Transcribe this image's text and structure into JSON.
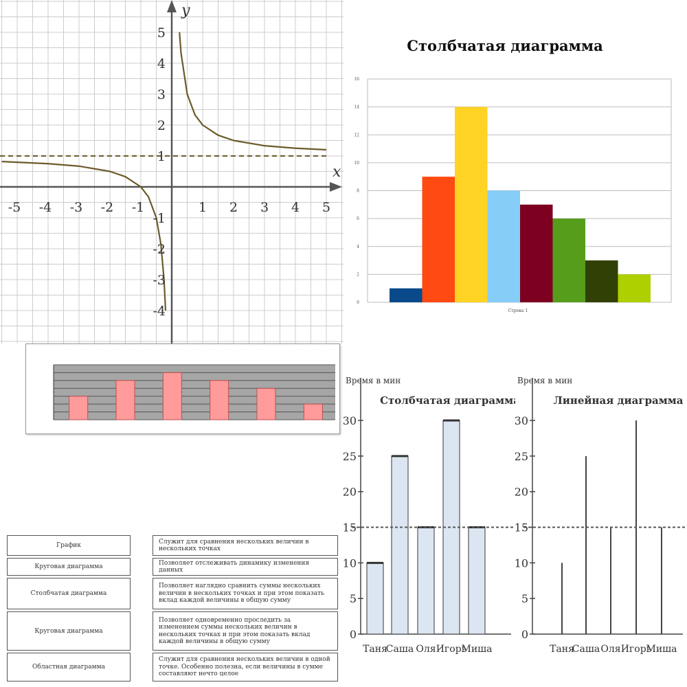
{
  "chart_data": [
    {
      "type": "line",
      "title": "",
      "xlabel": "x",
      "ylabel": "y",
      "xlim": [
        -5.5,
        5.5
      ],
      "ylim": [
        -4.6,
        5.4
      ],
      "xticks": [
        "-5",
        "-4",
        "-3",
        "-2",
        "-1",
        "1",
        "2",
        "3",
        "4",
        "5"
      ],
      "yticks": [
        "5",
        "4",
        "3",
        "2",
        "1",
        "-1",
        "-2",
        "-3",
        "-4"
      ],
      "asymptote_y": 1,
      "grid": true,
      "series": [
        {
          "x": [
            -5.5,
            -4,
            -3,
            -2,
            -1.5,
            -1,
            -0.75,
            -0.5,
            -0.35,
            -0.25,
            -0.2
          ],
          "y": [
            0.82,
            0.75,
            0.67,
            0.5,
            0.33,
            0,
            -0.33,
            -1,
            -1.86,
            -3,
            -4
          ]
        },
        {
          "x": [
            0.25,
            0.3,
            0.5,
            0.75,
            1,
            1.5,
            2,
            3,
            4,
            5
          ],
          "y": [
            5,
            4.33,
            3,
            2.33,
            2,
            1.67,
            1.5,
            1.33,
            1.25,
            1.2
          ]
        }
      ],
      "colors": {
        "curve": "#6b5a2a",
        "asymptote": "#6b5a2a",
        "grid": "#cccccc",
        "axis": "#555555"
      }
    },
    {
      "type": "bar",
      "title": "Столбчатая диаграмма",
      "xlabel": "Строка 1",
      "ylim": [
        0,
        16
      ],
      "yticks": [
        "0",
        "2",
        "4",
        "6",
        "8",
        "10",
        "12",
        "14",
        "16"
      ],
      "grid": true,
      "values": [
        1,
        9,
        14,
        8,
        7,
        6,
        3,
        2
      ],
      "colors": [
        "#0a4a8a",
        "#ff4a12",
        "#ffd324",
        "#86cdf8",
        "#7e0021",
        "#579d1c",
        "#314004",
        "#aecf00"
      ]
    },
    {
      "type": "bar",
      "title": "",
      "ylim": [
        0,
        7
      ],
      "grid": true,
      "values": [
        3,
        5,
        6,
        5,
        4,
        2
      ],
      "colors": {
        "bar": "#ff9b9b",
        "bar_border": "#c0504d",
        "plot_bg": "#a6a6a6",
        "grid": "#555555"
      }
    },
    {
      "type": "bar",
      "title": "Столбчатая диаграмма",
      "ylabel": "Время в мин",
      "ylim": [
        0,
        30
      ],
      "yticks": [
        "30",
        "25",
        "20",
        "15",
        "10",
        "5",
        "0"
      ],
      "categories": [
        "Таня",
        "Саша",
        "Оля",
        "Игорь",
        "Миша"
      ],
      "values": [
        10,
        25,
        15,
        30,
        15
      ],
      "reference_line": 15,
      "colors": {
        "bar": "#dce6f2",
        "bar_edge": "#555555"
      }
    },
    {
      "type": "line",
      "title": "Линейная диаграмма",
      "ylabel": "Время в мин",
      "ylim": [
        0,
        30
      ],
      "yticks": [
        "30",
        "25",
        "20",
        "15",
        "10",
        "5",
        "0"
      ],
      "categories": [
        "Таня",
        "Саша",
        "Оля",
        "Игорь",
        "Миша"
      ],
      "values": [
        10,
        25,
        15,
        30,
        15
      ],
      "reference_line": 15,
      "colors": {
        "line": "#444444"
      }
    }
  ],
  "table": {
    "left": [
      "График",
      "Круговая диаграмма",
      "Столбчатая диаграмма",
      "Круговая диаграмма",
      "Областная диаграмма"
    ],
    "right": [
      "Служит для сравнения нескольких величин в нескольких точках",
      "Позволяет отслеживать динамику изменения данных",
      "Позволяет наглядно сравнить суммы нескольких величин в нескольких точках и при этом показать вклад каждой величины в общую сумму",
      "Позволяет одновременно проследить за изменением суммы нескольких величин в нескольких точках и при этом показать вклад каждой величины в общую сумму",
      "Служит для сравнения нескольких величин в одной точке. Особенно полезна, если величины в сумме составляют нечто целое"
    ]
  }
}
